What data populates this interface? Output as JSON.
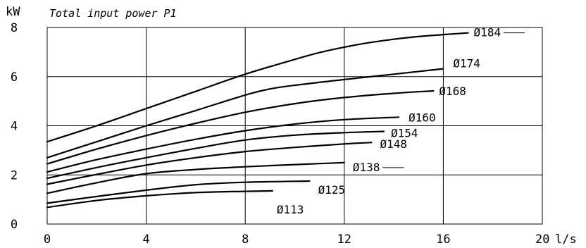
{
  "chart_data": {
    "type": "line",
    "title": "Total input power P1",
    "xlabel": "l/s",
    "ylabel": "kW",
    "xlim": [
      0,
      20
    ],
    "ylim": [
      0,
      8
    ],
    "x_ticks": [
      0,
      4,
      8,
      12,
      16,
      20
    ],
    "y_ticks": [
      0,
      2,
      4,
      6,
      8
    ],
    "grid": true,
    "series": [
      {
        "name": "Ø184",
        "x": [
          0,
          2,
          4,
          6,
          8,
          10,
          11,
          12,
          13,
          14,
          15,
          16,
          17
        ],
        "y": [
          3.35,
          4.0,
          4.7,
          5.4,
          6.1,
          6.7,
          6.98,
          7.2,
          7.38,
          7.52,
          7.63,
          7.71,
          7.78
        ]
      },
      {
        "name": "Ø174",
        "x": [
          0,
          2,
          4,
          6,
          8,
          9,
          10,
          12,
          14,
          16
        ],
        "y": [
          2.7,
          3.35,
          4.0,
          4.62,
          5.25,
          5.5,
          5.65,
          5.88,
          6.1,
          6.32
        ]
      },
      {
        "name": "Ø168",
        "x": [
          0,
          2,
          4,
          6,
          8,
          10,
          12,
          14,
          15.6
        ],
        "y": [
          2.45,
          3.05,
          3.6,
          4.1,
          4.55,
          4.9,
          5.15,
          5.32,
          5.42
        ]
      },
      {
        "name": "Ø160",
        "x": [
          0,
          2,
          4,
          6,
          8,
          10,
          12,
          14.2
        ],
        "y": [
          2.12,
          2.62,
          3.05,
          3.45,
          3.8,
          4.07,
          4.25,
          4.35
        ]
      },
      {
        "name": "Ø154",
        "x": [
          0,
          2,
          4,
          6,
          8,
          10,
          12,
          13.6
        ],
        "y": [
          1.86,
          2.3,
          2.7,
          3.08,
          3.42,
          3.62,
          3.72,
          3.77
        ]
      },
      {
        "name": "Ø148",
        "x": [
          0,
          2,
          4,
          6,
          8,
          10,
          12,
          13.1
        ],
        "y": [
          1.62,
          2.02,
          2.4,
          2.7,
          2.95,
          3.12,
          3.26,
          3.32
        ]
      },
      {
        "name": "Ø138",
        "x": [
          0,
          2,
          4,
          6,
          8,
          10,
          12
        ],
        "y": [
          1.25,
          1.68,
          2.05,
          2.22,
          2.33,
          2.42,
          2.5
        ]
      },
      {
        "name": "Ø125",
        "x": [
          0,
          2,
          4,
          6,
          8,
          10.6
        ],
        "y": [
          0.85,
          1.12,
          1.38,
          1.6,
          1.7,
          1.75
        ]
      },
      {
        "name": "Ø113",
        "x": [
          0,
          2,
          4,
          6,
          8,
          9.1
        ],
        "y": [
          0.68,
          0.96,
          1.15,
          1.28,
          1.33,
          1.35
        ]
      }
    ]
  }
}
